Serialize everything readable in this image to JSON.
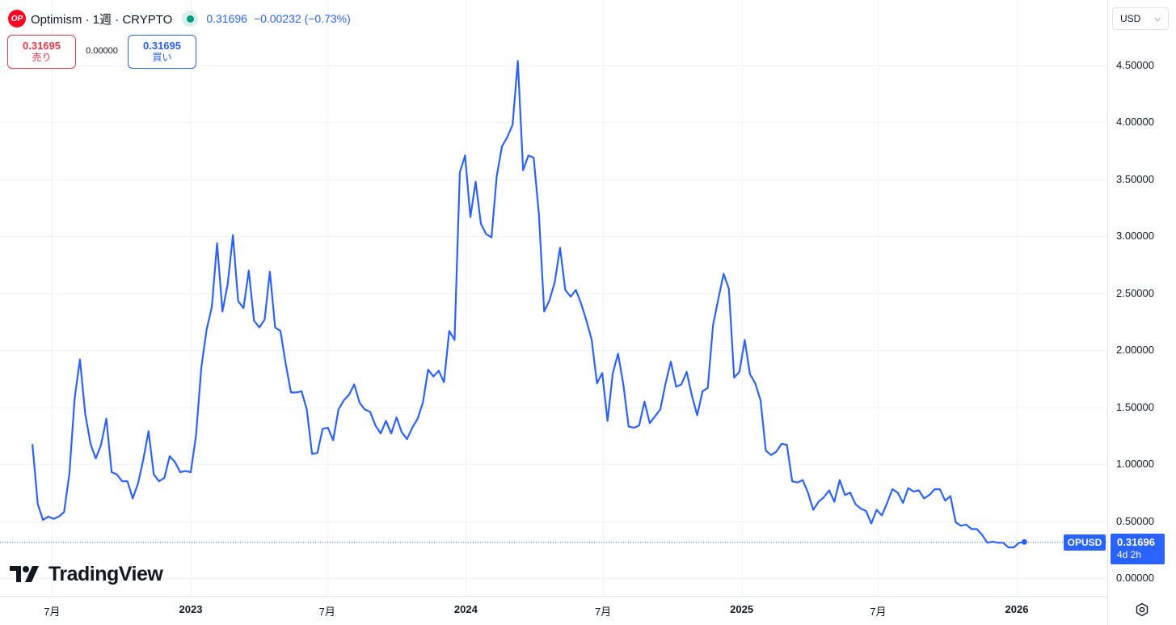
{
  "header": {
    "logo_text": "OP",
    "title": "Optimism · 1週 · CRYPTO",
    "last_price": "0.31696",
    "change": "−0.00232 (−0.73%)"
  },
  "trade": {
    "sell_price": "0.31695",
    "sell_label": "売り",
    "spread": "0.00000",
    "buy_price": "0.31695",
    "buy_label": "買い"
  },
  "currency": {
    "value": "USD"
  },
  "brand": {
    "name": "TradingView"
  },
  "price_tag": {
    "symbol": "OPUSD",
    "value": "0.31696",
    "countdown": "4d 2h"
  },
  "colors": {
    "line": "#2962ff",
    "grid": "#f0f3fa",
    "sell": "#f23645",
    "buy": "#2962ff"
  },
  "chart_data": {
    "type": "line",
    "ylim": [
      0,
      4.5
    ],
    "y_ticks": [
      {
        "value": 0,
        "label": "0.00000"
      },
      {
        "value": 0.5,
        "label": "0.50000"
      },
      {
        "value": 1.0,
        "label": "1.00000"
      },
      {
        "value": 1.5,
        "label": "1.50000"
      },
      {
        "value": 2.0,
        "label": "2.00000"
      },
      {
        "value": 2.5,
        "label": "2.50000"
      },
      {
        "value": 3.0,
        "label": "3.00000"
      },
      {
        "value": 3.5,
        "label": "3.50000"
      },
      {
        "value": 4.0,
        "label": "4.00000"
      },
      {
        "value": 4.5,
        "label": "4.50000"
      }
    ],
    "x_ticks": [
      {
        "date": "2022-07-01",
        "label": "7月",
        "year": false
      },
      {
        "date": "2023-01-01",
        "label": "2023",
        "year": true
      },
      {
        "date": "2023-07-01",
        "label": "7月",
        "year": false
      },
      {
        "date": "2024-01-01",
        "label": "2024",
        "year": true
      },
      {
        "date": "2024-07-01",
        "label": "7月",
        "year": false
      },
      {
        "date": "2025-01-01",
        "label": "2025",
        "year": true
      },
      {
        "date": "2025-07-01",
        "label": "7月",
        "year": false
      },
      {
        "date": "2026-01-01",
        "label": "2026",
        "year": true
      }
    ],
    "series": [
      {
        "points": [
          [
            "2022-06-05",
            1.17
          ],
          [
            "2022-06-12",
            0.65
          ],
          [
            "2022-06-19",
            0.51
          ],
          [
            "2022-06-26",
            0.54
          ],
          [
            "2022-07-03",
            0.52
          ],
          [
            "2022-07-10",
            0.54
          ],
          [
            "2022-07-17",
            0.58
          ],
          [
            "2022-07-24",
            0.92
          ],
          [
            "2022-07-31",
            1.58
          ],
          [
            "2022-08-07",
            1.92
          ],
          [
            "2022-08-14",
            1.44
          ],
          [
            "2022-08-21",
            1.18
          ],
          [
            "2022-08-28",
            1.05
          ],
          [
            "2022-09-04",
            1.17
          ],
          [
            "2022-09-11",
            1.4
          ],
          [
            "2022-09-18",
            0.93
          ],
          [
            "2022-09-25",
            0.91
          ],
          [
            "2022-10-02",
            0.85
          ],
          [
            "2022-10-09",
            0.85
          ],
          [
            "2022-10-16",
            0.7
          ],
          [
            "2022-10-23",
            0.83
          ],
          [
            "2022-10-30",
            1.04
          ],
          [
            "2022-11-06",
            1.29
          ],
          [
            "2022-11-13",
            0.91
          ],
          [
            "2022-11-20",
            0.85
          ],
          [
            "2022-11-27",
            0.88
          ],
          [
            "2022-12-04",
            1.07
          ],
          [
            "2022-12-11",
            1.02
          ],
          [
            "2022-12-18",
            0.93
          ],
          [
            "2022-12-25",
            0.94
          ],
          [
            "2023-01-01",
            0.93
          ],
          [
            "2023-01-08",
            1.25
          ],
          [
            "2023-01-15",
            1.85
          ],
          [
            "2023-01-22",
            2.18
          ],
          [
            "2023-01-29",
            2.38
          ],
          [
            "2023-02-05",
            2.94
          ],
          [
            "2023-02-12",
            2.34
          ],
          [
            "2023-02-19",
            2.58
          ],
          [
            "2023-02-26",
            3.01
          ],
          [
            "2023-03-05",
            2.43
          ],
          [
            "2023-03-12",
            2.37
          ],
          [
            "2023-03-19",
            2.7
          ],
          [
            "2023-03-26",
            2.26
          ],
          [
            "2023-04-02",
            2.2
          ],
          [
            "2023-04-09",
            2.27
          ],
          [
            "2023-04-16",
            2.69
          ],
          [
            "2023-04-23",
            2.2
          ],
          [
            "2023-04-30",
            2.17
          ],
          [
            "2023-05-07",
            1.88
          ],
          [
            "2023-05-14",
            1.63
          ],
          [
            "2023-05-21",
            1.63
          ],
          [
            "2023-05-28",
            1.64
          ],
          [
            "2023-06-04",
            1.48
          ],
          [
            "2023-06-11",
            1.09
          ],
          [
            "2023-06-18",
            1.1
          ],
          [
            "2023-06-25",
            1.31
          ],
          [
            "2023-07-02",
            1.32
          ],
          [
            "2023-07-09",
            1.21
          ],
          [
            "2023-07-16",
            1.48
          ],
          [
            "2023-07-23",
            1.56
          ],
          [
            "2023-07-30",
            1.61
          ],
          [
            "2023-08-06",
            1.7
          ],
          [
            "2023-08-13",
            1.54
          ],
          [
            "2023-08-20",
            1.48
          ],
          [
            "2023-08-27",
            1.46
          ],
          [
            "2023-09-03",
            1.34
          ],
          [
            "2023-09-10",
            1.27
          ],
          [
            "2023-09-17",
            1.38
          ],
          [
            "2023-09-24",
            1.27
          ],
          [
            "2023-10-01",
            1.41
          ],
          [
            "2023-10-08",
            1.28
          ],
          [
            "2023-10-15",
            1.22
          ],
          [
            "2023-10-22",
            1.32
          ],
          [
            "2023-10-29",
            1.4
          ],
          [
            "2023-11-05",
            1.54
          ],
          [
            "2023-11-12",
            1.83
          ],
          [
            "2023-11-19",
            1.77
          ],
          [
            "2023-11-26",
            1.82
          ],
          [
            "2023-12-03",
            1.72
          ],
          [
            "2023-12-10",
            2.17
          ],
          [
            "2023-12-17",
            2.09
          ],
          [
            "2023-12-24",
            3.56
          ],
          [
            "2023-12-31",
            3.71
          ],
          [
            "2024-01-07",
            3.17
          ],
          [
            "2024-01-14",
            3.48
          ],
          [
            "2024-01-21",
            3.11
          ],
          [
            "2024-01-28",
            3.02
          ],
          [
            "2024-02-04",
            2.99
          ],
          [
            "2024-02-11",
            3.53
          ],
          [
            "2024-02-18",
            3.79
          ],
          [
            "2024-02-25",
            3.87
          ],
          [
            "2024-03-03",
            3.98
          ],
          [
            "2024-03-10",
            4.54
          ],
          [
            "2024-03-17",
            3.58
          ],
          [
            "2024-03-24",
            3.71
          ],
          [
            "2024-03-31",
            3.69
          ],
          [
            "2024-04-07",
            3.19
          ],
          [
            "2024-04-14",
            2.34
          ],
          [
            "2024-04-21",
            2.44
          ],
          [
            "2024-04-28",
            2.6
          ],
          [
            "2024-05-05",
            2.9
          ],
          [
            "2024-05-12",
            2.53
          ],
          [
            "2024-05-19",
            2.47
          ],
          [
            "2024-05-26",
            2.53
          ],
          [
            "2024-06-02",
            2.41
          ],
          [
            "2024-06-09",
            2.26
          ],
          [
            "2024-06-16",
            2.09
          ],
          [
            "2024-06-23",
            1.71
          ],
          [
            "2024-06-30",
            1.8
          ],
          [
            "2024-07-07",
            1.38
          ],
          [
            "2024-07-14",
            1.8
          ],
          [
            "2024-07-21",
            1.97
          ],
          [
            "2024-07-28",
            1.7
          ],
          [
            "2024-08-04",
            1.33
          ],
          [
            "2024-08-11",
            1.32
          ],
          [
            "2024-08-18",
            1.34
          ],
          [
            "2024-08-25",
            1.55
          ],
          [
            "2024-09-01",
            1.36
          ],
          [
            "2024-09-08",
            1.42
          ],
          [
            "2024-09-15",
            1.48
          ],
          [
            "2024-09-22",
            1.71
          ],
          [
            "2024-09-29",
            1.9
          ],
          [
            "2024-10-06",
            1.68
          ],
          [
            "2024-10-13",
            1.7
          ],
          [
            "2024-10-20",
            1.81
          ],
          [
            "2024-10-27",
            1.6
          ],
          [
            "2024-11-03",
            1.43
          ],
          [
            "2024-11-10",
            1.64
          ],
          [
            "2024-11-17",
            1.67
          ],
          [
            "2024-11-24",
            2.22
          ],
          [
            "2024-12-01",
            2.45
          ],
          [
            "2024-12-08",
            2.67
          ],
          [
            "2024-12-15",
            2.54
          ],
          [
            "2024-12-22",
            1.76
          ],
          [
            "2024-12-29",
            1.81
          ],
          [
            "2025-01-05",
            2.09
          ],
          [
            "2025-01-12",
            1.79
          ],
          [
            "2025-01-19",
            1.71
          ],
          [
            "2025-01-26",
            1.56
          ],
          [
            "2025-02-02",
            1.12
          ],
          [
            "2025-02-09",
            1.08
          ],
          [
            "2025-02-16",
            1.11
          ],
          [
            "2025-02-23",
            1.18
          ],
          [
            "2025-03-02",
            1.17
          ],
          [
            "2025-03-09",
            0.85
          ],
          [
            "2025-03-16",
            0.84
          ],
          [
            "2025-03-23",
            0.86
          ],
          [
            "2025-03-30",
            0.75
          ],
          [
            "2025-04-06",
            0.6
          ],
          [
            "2025-04-13",
            0.67
          ],
          [
            "2025-04-20",
            0.71
          ],
          [
            "2025-04-27",
            0.77
          ],
          [
            "2025-05-04",
            0.67
          ],
          [
            "2025-05-11",
            0.86
          ],
          [
            "2025-05-18",
            0.73
          ],
          [
            "2025-05-25",
            0.75
          ],
          [
            "2025-06-01",
            0.65
          ],
          [
            "2025-06-08",
            0.61
          ],
          [
            "2025-06-15",
            0.59
          ],
          [
            "2025-06-22",
            0.48
          ],
          [
            "2025-06-29",
            0.6
          ],
          [
            "2025-07-06",
            0.55
          ],
          [
            "2025-07-13",
            0.66
          ],
          [
            "2025-07-20",
            0.78
          ],
          [
            "2025-07-27",
            0.75
          ],
          [
            "2025-08-03",
            0.66
          ],
          [
            "2025-08-10",
            0.79
          ],
          [
            "2025-08-17",
            0.76
          ],
          [
            "2025-08-24",
            0.77
          ],
          [
            "2025-08-31",
            0.7
          ],
          [
            "2025-09-07",
            0.73
          ],
          [
            "2025-09-14",
            0.78
          ],
          [
            "2025-09-21",
            0.78
          ],
          [
            "2025-09-28",
            0.68
          ],
          [
            "2025-10-05",
            0.72
          ],
          [
            "2025-10-12",
            0.49
          ],
          [
            "2025-10-19",
            0.46
          ],
          [
            "2025-10-26",
            0.47
          ],
          [
            "2025-11-02",
            0.43
          ],
          [
            "2025-11-09",
            0.43
          ],
          [
            "2025-11-16",
            0.38
          ],
          [
            "2025-11-23",
            0.31
          ],
          [
            "2025-11-30",
            0.32
          ],
          [
            "2025-12-07",
            0.31
          ],
          [
            "2025-12-14",
            0.31
          ],
          [
            "2025-12-21",
            0.27
          ],
          [
            "2025-12-28",
            0.27
          ],
          [
            "2026-01-04",
            0.31
          ],
          [
            "2026-01-11",
            0.317
          ]
        ]
      }
    ],
    "last_value": 0.31696,
    "grid": true
  }
}
